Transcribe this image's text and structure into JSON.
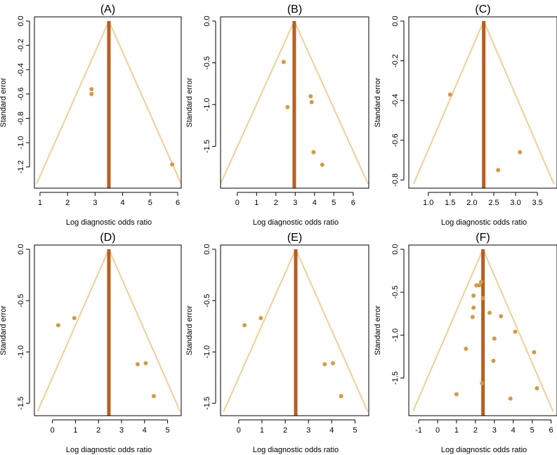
{
  "colors": {
    "funnel": "#f0cf96",
    "center": "#b85e20",
    "point": "#d59a40",
    "frame": "#000000",
    "axis": "#000000"
  },
  "chart_data": [
    {
      "type": "scatter",
      "subtype": "funnel",
      "title": "(A)",
      "xlabel": "Log diagnostic odds ratio",
      "ylabel": "Standard error",
      "xlim": [
        0.95,
        6.05
      ],
      "ylim": [
        -1.34,
        0.0
      ],
      "xticks": [
        1,
        2,
        3,
        4,
        5,
        6
      ],
      "xtick_labels": [
        "1",
        "2",
        "3",
        "4",
        "5",
        "6"
      ],
      "yticks": [
        0.0,
        -0.2,
        -0.4,
        -0.6,
        -0.8,
        -1.0,
        -1.2
      ],
      "ytick_labels": [
        "0.0",
        "-0.2",
        "-0.4",
        "-0.6",
        "-0.8",
        "-1.0",
        "-1.2"
      ],
      "center": 3.5,
      "funnel_bottom": -1.34,
      "points": [
        {
          "x": 2.87,
          "y": -0.56
        },
        {
          "x": 2.87,
          "y": -0.6
        },
        {
          "x": 5.8,
          "y": -1.18
        }
      ]
    },
    {
      "type": "scatter",
      "subtype": "funnel",
      "title": "(B)",
      "xlabel": "Log diagnostic odds ratio",
      "ylabel": "Standard error",
      "xlim": [
        -0.65,
        6.7
      ],
      "ylim": [
        -1.95,
        0.0
      ],
      "xticks": [
        0,
        1,
        2,
        3,
        4,
        5,
        6
      ],
      "xtick_labels": [
        "0",
        "1",
        "2",
        "3",
        "4",
        "5",
        "6"
      ],
      "yticks": [
        0.0,
        -0.5,
        -1.0,
        -1.5
      ],
      "ytick_labels": [
        "0.0",
        "-0.5",
        "-1.0",
        "-1.5"
      ],
      "center": 2.95,
      "funnel_bottom": -1.95,
      "points": [
        {
          "x": 2.4,
          "y": -0.49
        },
        {
          "x": 2.6,
          "y": -1.03
        },
        {
          "x": 3.8,
          "y": -0.9
        },
        {
          "x": 3.85,
          "y": -0.97
        },
        {
          "x": 3.95,
          "y": -1.57
        },
        {
          "x": 4.4,
          "y": -1.72
        }
      ]
    },
    {
      "type": "scatter",
      "subtype": "funnel",
      "title": "(C)",
      "xlabel": "Log diagnostic odds ratio",
      "ylabel": "Standard error",
      "xlim": [
        0.65,
        3.9
      ],
      "ylim": [
        -0.82,
        0.0
      ],
      "xticks": [
        1.0,
        1.5,
        2.0,
        2.5,
        3.0,
        3.5
      ],
      "xtick_labels": [
        "1.0",
        "1.5",
        "2.0",
        "2.5",
        "3.0",
        "3.5"
      ],
      "yticks": [
        0.0,
        -0.2,
        -0.4,
        -0.6,
        -0.8
      ],
      "ytick_labels": [
        "0.0",
        "-0.2",
        "-0.4",
        "-0.6",
        "-0.8"
      ],
      "center": 2.27,
      "funnel_bottom": -0.82,
      "points": [
        {
          "x": 1.5,
          "y": -0.37
        },
        {
          "x": 3.1,
          "y": -0.66
        },
        {
          "x": 2.6,
          "y": -0.75
        }
      ]
    },
    {
      "type": "scatter",
      "subtype": "funnel",
      "title": "(D)",
      "xlabel": "Log diagnostic odds ratio",
      "ylabel": "Standard error",
      "xlim": [
        -0.6,
        5.5
      ],
      "ylim": [
        -1.58,
        0.0
      ],
      "xticks": [
        0,
        1,
        2,
        3,
        4,
        5
      ],
      "xtick_labels": [
        "0",
        "1",
        "2",
        "3",
        "4",
        "5"
      ],
      "yticks": [
        0.0,
        -0.5,
        -1.0,
        -1.5
      ],
      "ytick_labels": [
        "0.0",
        "-0.5",
        "-1.0",
        "-1.5"
      ],
      "center": 2.45,
      "funnel_bottom": -1.58,
      "points": [
        {
          "x": 0.25,
          "y": -0.74
        },
        {
          "x": 0.95,
          "y": -0.67
        },
        {
          "x": 3.7,
          "y": -1.12
        },
        {
          "x": 4.05,
          "y": -1.11
        },
        {
          "x": 4.4,
          "y": -1.43
        }
      ]
    },
    {
      "type": "scatter",
      "subtype": "funnel",
      "title": "(E)",
      "xlabel": "Log diagnostic odds ratio",
      "ylabel": "Standard error",
      "xlim": [
        -0.6,
        5.5
      ],
      "ylim": [
        -1.58,
        0.0
      ],
      "xticks": [
        0,
        1,
        2,
        3,
        4,
        5
      ],
      "xtick_labels": [
        "0",
        "1",
        "2",
        "3",
        "4",
        "5"
      ],
      "yticks": [
        0.0,
        -0.5,
        -1.0,
        -1.5
      ],
      "ytick_labels": [
        "0.0",
        "-0.5",
        "-1.0",
        "-1.5"
      ],
      "center": 2.45,
      "funnel_bottom": -1.58,
      "points": [
        {
          "x": 0.25,
          "y": -0.74
        },
        {
          "x": 0.95,
          "y": -0.67
        },
        {
          "x": 3.7,
          "y": -1.12
        },
        {
          "x": 4.05,
          "y": -1.11
        },
        {
          "x": 4.4,
          "y": -1.43
        }
      ]
    },
    {
      "type": "scatter",
      "subtype": "funnel",
      "title": "(F)",
      "xlabel": "Log diagnostic odds ratio",
      "ylabel": "Standard error",
      "xlim": [
        -1.3,
        6.2
      ],
      "ylim": [
        -1.89,
        0.0
      ],
      "xticks": [
        -1,
        0,
        1,
        2,
        3,
        4,
        5,
        6
      ],
      "xtick_labels": [
        "-1",
        "0",
        "1",
        "2",
        "3",
        "4",
        "5",
        "6"
      ],
      "yticks": [
        0.0,
        -0.5,
        -1.0,
        -1.5
      ],
      "ytick_labels": [
        "0.0",
        "-0.5",
        "-1.0",
        "-1.5"
      ],
      "center": 2.4,
      "funnel_bottom": -1.89,
      "points": [
        {
          "x": 2.3,
          "y": -0.38
        },
        {
          "x": 2.05,
          "y": -0.42
        },
        {
          "x": 2.2,
          "y": -0.42
        },
        {
          "x": 1.9,
          "y": -0.54
        },
        {
          "x": 2.4,
          "y": -0.57
        },
        {
          "x": 1.9,
          "y": -0.68
        },
        {
          "x": 1.85,
          "y": -0.79
        },
        {
          "x": 2.75,
          "y": -0.74
        },
        {
          "x": 3.35,
          "y": -0.78
        },
        {
          "x": 4.1,
          "y": -0.96
        },
        {
          "x": 3.0,
          "y": -1.04
        },
        {
          "x": 1.5,
          "y": -1.16
        },
        {
          "x": 5.1,
          "y": -1.2
        },
        {
          "x": 2.95,
          "y": -1.3
        },
        {
          "x": 2.35,
          "y": -1.56
        },
        {
          "x": 5.25,
          "y": -1.62
        },
        {
          "x": 1.0,
          "y": -1.69
        },
        {
          "x": 3.85,
          "y": -1.74
        }
      ]
    }
  ]
}
